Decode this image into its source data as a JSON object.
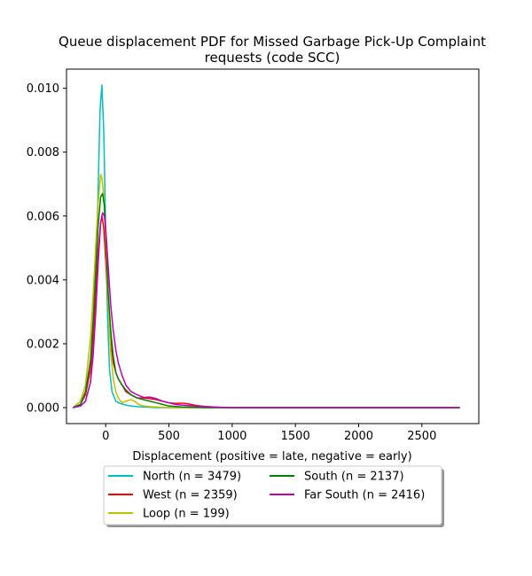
{
  "chart_data": {
    "type": "line",
    "title": "Queue displacement PDF for Missed Garbage Pick-Up Complaint requests (code SCC)",
    "title_lines": [
      "Queue displacement PDF for Missed Garbage Pick-Up Complaint",
      "requests (code SCC)"
    ],
    "xlabel": "Displacement (positive = late, negative = early)",
    "ylabel": "",
    "xlim": [
      -310,
      2950
    ],
    "ylim": [
      -0.0005,
      0.0106
    ],
    "xticks": [
      0,
      500,
      1000,
      1500,
      2000,
      2500
    ],
    "yticks": [
      0.0,
      0.002,
      0.004,
      0.006,
      0.008,
      0.01
    ],
    "xtick_labels": [
      "0",
      "500",
      "1000",
      "1500",
      "2000",
      "2500"
    ],
    "ytick_labels": [
      "0.000",
      "0.002",
      "0.004",
      "0.006",
      "0.008",
      "0.010"
    ],
    "grid": false,
    "legend_position": "below plot, centered, two columns",
    "series": [
      {
        "name": "North (n = 3479)",
        "color": "#00bfbf",
        "x": [
          -260,
          -200,
          -160,
          -120,
          -100,
          -80,
          -60,
          -45,
          -30,
          -15,
          0,
          15,
          30,
          50,
          80,
          120,
          160,
          200,
          250,
          300,
          400,
          600,
          800,
          1000,
          1500,
          2000,
          2500,
          2800
        ],
        "y": [
          0.0,
          5e-05,
          0.0002,
          0.0008,
          0.0018,
          0.0038,
          0.0068,
          0.0093,
          0.0101,
          0.0086,
          0.0055,
          0.0028,
          0.0012,
          0.0005,
          0.0002,
          0.00012,
          8e-05,
          5e-05,
          3e-05,
          2e-05,
          0.0,
          0.0,
          0.0,
          0.0,
          0.0,
          0.0,
          0.0,
          0.0
        ]
      },
      {
        "name": "West (n = 2359)",
        "color": "#ff0000",
        "x": [
          -260,
          -200,
          -160,
          -120,
          -100,
          -80,
          -60,
          -40,
          -30,
          -15,
          0,
          20,
          40,
          60,
          80,
          100,
          130,
          160,
          200,
          250,
          300,
          350,
          400,
          450,
          500,
          550,
          600,
          650,
          700,
          750,
          800,
          850,
          900,
          1000,
          1500,
          2000,
          2500,
          2800
        ],
        "y": [
          0.0,
          0.0001,
          0.0004,
          0.0012,
          0.0022,
          0.0035,
          0.0049,
          0.0058,
          0.006,
          0.0056,
          0.0046,
          0.0032,
          0.0021,
          0.0014,
          0.0011,
          0.0009,
          0.0007,
          0.0005,
          0.0004,
          0.0003,
          0.0003,
          0.00028,
          0.00025,
          0.0002,
          0.00015,
          0.00013,
          0.00014,
          0.00012,
          8e-05,
          5e-05,
          3e-05,
          2e-05,
          1e-05,
          0.0,
          0.0,
          0.0,
          0.0,
          0.0
        ]
      },
      {
        "name": "Loop (n = 199)",
        "color": "#bfbf00",
        "x": [
          -260,
          -200,
          -160,
          -120,
          -100,
          -80,
          -60,
          -40,
          -30,
          -15,
          0,
          20,
          40,
          60,
          80,
          100,
          130,
          160,
          200,
          230,
          260,
          300,
          350,
          400,
          450,
          500,
          550,
          600,
          800,
          1000,
          1500,
          2000,
          2500,
          2800
        ],
        "y": [
          0.0,
          0.0002,
          0.0007,
          0.0022,
          0.0035,
          0.005,
          0.0064,
          0.0073,
          0.0072,
          0.0066,
          0.0052,
          0.0032,
          0.0017,
          0.0009,
          0.0005,
          0.0003,
          0.00015,
          0.0002,
          0.00025,
          0.0002,
          0.0001,
          5e-05,
          3e-05,
          2e-05,
          1e-05,
          0.0,
          0.0,
          0.0,
          0.0,
          0.0,
          0.0,
          0.0,
          0.0,
          0.0
        ]
      },
      {
        "name": "South (n = 2137)",
        "color": "#008000",
        "x": [
          -260,
          -200,
          -160,
          -120,
          -100,
          -80,
          -60,
          -40,
          -25,
          -10,
          0,
          20,
          40,
          60,
          80,
          100,
          130,
          160,
          200,
          250,
          300,
          350,
          400,
          450,
          500,
          600,
          800,
          1000,
          1500,
          2000,
          2500,
          2800
        ],
        "y": [
          0.0,
          0.0001,
          0.0005,
          0.0015,
          0.0027,
          0.0042,
          0.0057,
          0.0066,
          0.0067,
          0.0063,
          0.0055,
          0.0036,
          0.0024,
          0.0016,
          0.0011,
          0.0009,
          0.0007,
          0.00055,
          0.0004,
          0.0003,
          0.00025,
          0.0002,
          0.00015,
          0.0001,
          5e-05,
          2e-05,
          0.0,
          0.0,
          0.0,
          0.0,
          0.0,
          0.0
        ]
      },
      {
        "name": "Far South (n = 2416)",
        "color": "#bf00bf",
        "x": [
          -260,
          -200,
          -160,
          -120,
          -100,
          -80,
          -60,
          -40,
          -25,
          -10,
          0,
          20,
          40,
          60,
          80,
          100,
          130,
          160,
          200,
          250,
          300,
          350,
          400,
          450,
          500,
          550,
          600,
          700,
          800,
          900,
          1000,
          1500,
          2000,
          2500,
          2800
        ],
        "y": [
          0.0,
          5e-05,
          0.0002,
          0.0008,
          0.0016,
          0.0029,
          0.0045,
          0.0058,
          0.0061,
          0.006,
          0.0056,
          0.0044,
          0.0032,
          0.0024,
          0.0018,
          0.0014,
          0.001,
          0.0007,
          0.0005,
          0.0004,
          0.00032,
          0.00033,
          0.00028,
          0.0002,
          0.00015,
          0.0001,
          8e-05,
          5e-05,
          3e-05,
          1e-05,
          0.0,
          0.0,
          0.0,
          0.0,
          0.0
        ]
      }
    ]
  }
}
